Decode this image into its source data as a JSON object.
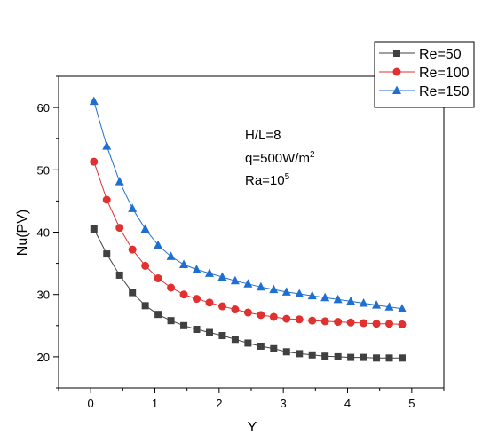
{
  "chart_data": {
    "type": "line",
    "xlabel": "Y",
    "ylabel": "Nu(PV)",
    "xlim": [
      -0.5,
      5.5
    ],
    "ylim": [
      15,
      65
    ],
    "xticks": [
      0,
      1,
      2,
      3,
      4,
      5
    ],
    "yticks": [
      20,
      30,
      40,
      50,
      60
    ],
    "grid": false,
    "legend_position": "top-right",
    "annotation": {
      "line1": "H/L=8",
      "line2_base": "q=500W/m",
      "line2_sup": "2",
      "line3_base": "Ra=10",
      "line3_sup": "5"
    },
    "x": [
      0.05,
      0.25,
      0.45,
      0.65,
      0.85,
      1.05,
      1.25,
      1.45,
      1.65,
      1.85,
      2.05,
      2.25,
      2.45,
      2.65,
      2.85,
      3.05,
      3.25,
      3.45,
      3.65,
      3.85,
      4.05,
      4.25,
      4.45,
      4.65,
      4.85
    ],
    "series": [
      {
        "name": "Re=50",
        "color": "#404040",
        "marker": "square",
        "values": [
          40.5,
          36.5,
          33.1,
          30.3,
          28.2,
          26.8,
          25.8,
          25.0,
          24.4,
          23.9,
          23.4,
          22.8,
          22.2,
          21.7,
          21.3,
          20.8,
          20.5,
          20.3,
          20.1,
          20.0,
          19.9,
          19.9,
          19.8,
          19.8,
          19.8
        ]
      },
      {
        "name": "Re=100",
        "color": "#e03030",
        "marker": "circle",
        "values": [
          51.3,
          45.2,
          40.7,
          37.2,
          34.6,
          32.6,
          31.1,
          30.0,
          29.3,
          28.7,
          28.1,
          27.6,
          27.1,
          26.7,
          26.4,
          26.1,
          26.0,
          25.8,
          25.7,
          25.6,
          25.5,
          25.4,
          25.3,
          25.3,
          25.2
        ]
      },
      {
        "name": "Re=150",
        "color": "#1f6fd0",
        "marker": "triangle",
        "values": [
          61.0,
          53.8,
          48.1,
          43.8,
          40.5,
          37.9,
          36.1,
          34.8,
          34.0,
          33.4,
          32.8,
          32.2,
          31.7,
          31.2,
          30.8,
          30.4,
          30.1,
          29.8,
          29.5,
          29.2,
          28.9,
          28.6,
          28.3,
          28.0,
          27.7
        ]
      }
    ]
  }
}
